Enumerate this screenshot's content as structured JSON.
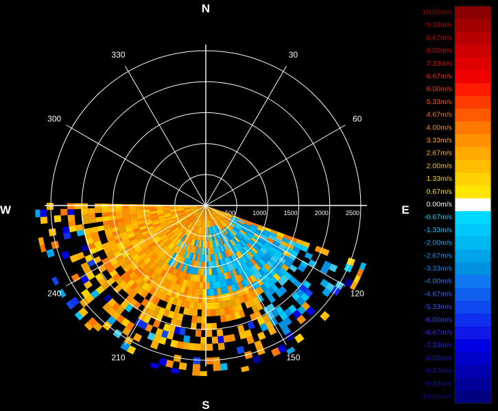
{
  "chart_data": {
    "type": "heatmap",
    "description_units": "Radial velocity field on polar plot; range rings labeled in meters",
    "cardinals": {
      "n": "N",
      "e": "E",
      "s": "S",
      "w": "W"
    },
    "azimuth_labels": [
      "30",
      "60",
      "120",
      "150",
      "210",
      "240",
      "300",
      "330"
    ],
    "azimuth_label_angles": [
      30,
      60,
      120,
      150,
      210,
      240,
      300,
      330
    ],
    "range_rings": [
      500,
      1000,
      1500,
      2000,
      2500
    ],
    "range_labels": [
      "500",
      "1000",
      "1500",
      "2000",
      "2500"
    ],
    "max_range": 2600,
    "scan_sector_deg": [
      110,
      270
    ],
    "legend": {
      "labels": [
        "10.00m/s",
        "9.33m/s",
        "8.67m/s",
        "8.00m/s",
        "7.33m/s",
        "6.67m/s",
        "6.00m/s",
        "5.33m/s",
        "4.67m/s",
        "4.00m/s",
        "3.33m/s",
        "2.67m/s",
        "2.00m/s",
        "1.33m/s",
        "0.67m/s",
        "0.00m/s",
        "-0.67m/s",
        "-1.33m/s",
        "-2.00m/s",
        "-2.67m/s",
        "-3.33m/s",
        "-4.00m/s",
        "-4.67m/s",
        "-5.33m/s",
        "-6.00m/s",
        "-6.67m/s",
        "-7.33m/s",
        "-8.00m/s",
        "-8.67m/s",
        "-9.33m/s",
        "-10.00m/s"
      ],
      "colors": [
        "#8b0000",
        "#a10000",
        "#b70000",
        "#cc0000",
        "#e00000",
        "#f00000",
        "#ff1a00",
        "#ff3c00",
        "#ff5a00",
        "#ff7800",
        "#ff9000",
        "#ffa800",
        "#ffbf00",
        "#ffd200",
        "#ffe600",
        "#ffffff",
        "#00d8ff",
        "#00c8f8",
        "#00b8f0",
        "#00a5e8",
        "#0090e0",
        "#1078f0",
        "#1060f0",
        "#1048f0",
        "#1030f0",
        "#1018e8",
        "#0000e0",
        "#0000c8",
        "#0000b0",
        "#000098",
        "#000080"
      ],
      "label_colors": [
        "#a00000",
        "#b40000",
        "#c80000",
        "#dc0000",
        "#f00000",
        "#ff2020",
        "#ff3a00",
        "#ff5a00",
        "#ff7a00",
        "#ff9000",
        "#ffa400",
        "#ffb800",
        "#ffc800",
        "#ffd800",
        "#ffe800",
        "#ffffff",
        "#00d8ff",
        "#00c8ff",
        "#00b4ff",
        "#00a0ff",
        "#008cff",
        "#2a78ff",
        "#3a64ff",
        "#3a50ff",
        "#3a3cff",
        "#3028ff",
        "#2020f0",
        "#1818d0",
        "#1414b8",
        "#1010a0",
        "#0c0c88"
      ]
    }
  }
}
